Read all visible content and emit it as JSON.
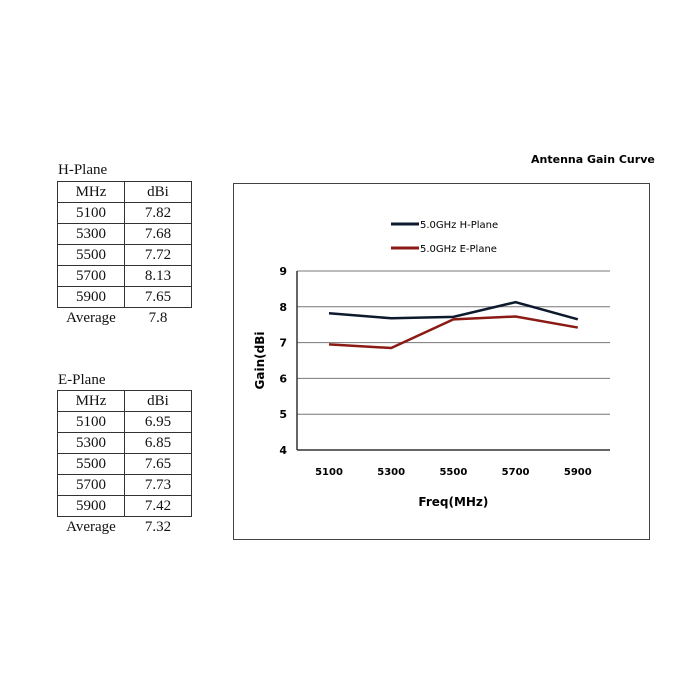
{
  "h_plane": {
    "label": "H-Plane",
    "headers": [
      "MHz",
      "dBi"
    ],
    "rows": [
      [
        "5100",
        "7.82"
      ],
      [
        "5300",
        "7.68"
      ],
      [
        "5500",
        "7.72"
      ],
      [
        "5700",
        "8.13"
      ],
      [
        "5900",
        "7.65"
      ]
    ],
    "average_label": "Average",
    "average": "7.8"
  },
  "e_plane": {
    "label": "E-Plane",
    "headers": [
      "MHz",
      "dBi"
    ],
    "rows": [
      [
        "5100",
        "6.95"
      ],
      [
        "5300",
        "6.85"
      ],
      [
        "5500",
        "7.65"
      ],
      [
        "5700",
        "7.73"
      ],
      [
        "5900",
        "7.42"
      ]
    ],
    "average_label": "Average",
    "average": "7.32"
  },
  "chart_data": {
    "type": "line",
    "title": "Antenna Gain Curve",
    "xlabel": "Freq(MHz)",
    "ylabel": "Gain(dBi",
    "categories": [
      "5100",
      "5300",
      "5500",
      "5700",
      "5900"
    ],
    "ylim": [
      4,
      9
    ],
    "yticks": [
      "4",
      "5",
      "6",
      "7",
      "8",
      "9"
    ],
    "grid": true,
    "legend_placement": "top",
    "series": [
      {
        "name": "5.0GHz H-Plane",
        "values": [
          7.82,
          7.68,
          7.72,
          8.13,
          7.65
        ],
        "color": "#0d1a2e"
      },
      {
        "name": "5.0GHz E-Plane",
        "values": [
          6.95,
          6.85,
          7.65,
          7.73,
          7.42
        ],
        "color": "#8b1a14"
      }
    ]
  }
}
